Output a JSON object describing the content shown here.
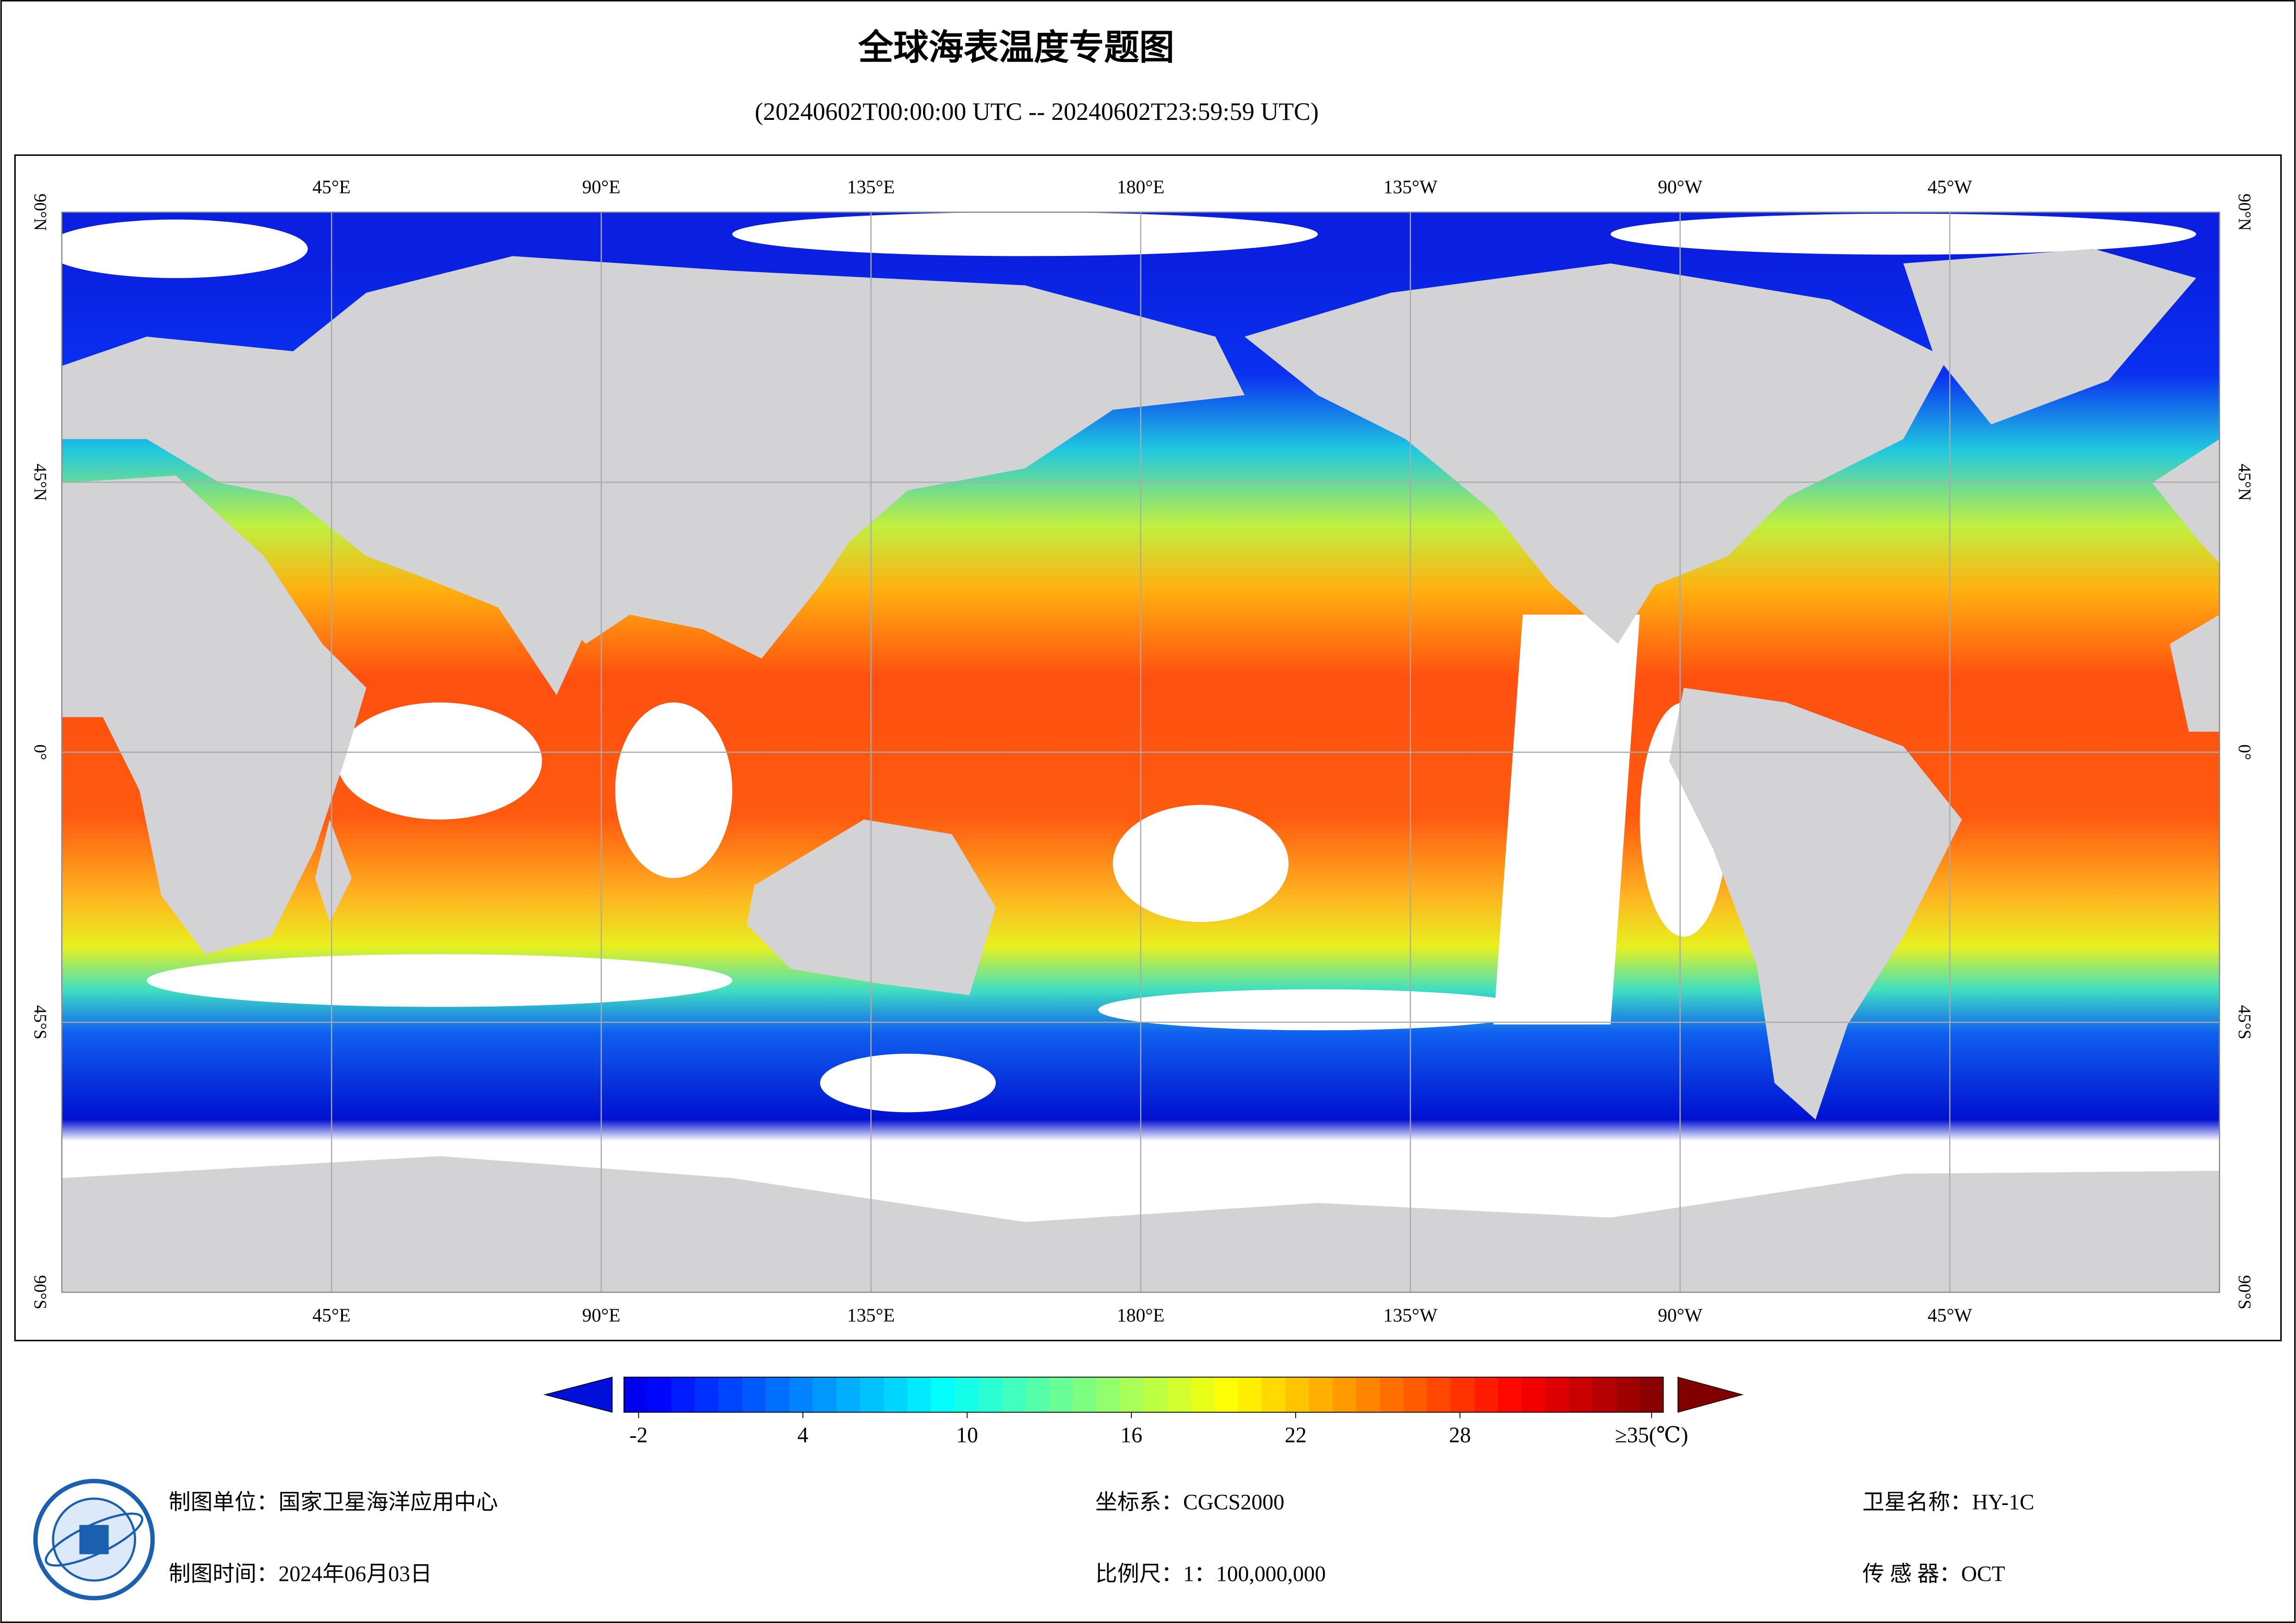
{
  "header": {
    "title": "全球海表温度专题图",
    "subtitle": "(20240602T00:00:00 UTC -- 20240602T23:59:59 UTC)"
  },
  "map": {
    "longitude_labels": [
      "45°E",
      "90°E",
      "135°E",
      "180°E",
      "135°W",
      "90°W",
      "45°W"
    ],
    "latitude_labels": [
      "90°N",
      "45°N",
      "0°",
      "45°S",
      "90°S"
    ]
  },
  "colorbar": {
    "ticks": [
      -2,
      4,
      10,
      16,
      22,
      28,
      {
        "value": 35,
        "label": "≥35(℃)"
      }
    ]
  },
  "footer": {
    "left": [
      "制图单位：国家卫星海洋应用中心",
      "制图时间：2024年06月03日"
    ],
    "middle": [
      "坐标系：CGCS2000",
      "比例尺：1：100,000,000"
    ],
    "right": [
      "卫星名称：HY-1C",
      "传 感 器：OCT"
    ]
  }
}
